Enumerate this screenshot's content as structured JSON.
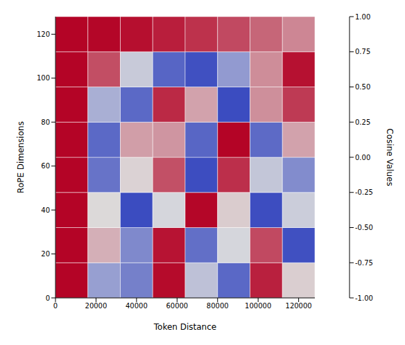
{
  "chart_data": {
    "type": "heatmap",
    "x_label": "Token Distance",
    "y_label": "RoPE Dimensions",
    "x_bins": [
      0,
      16000,
      32000,
      48000,
      64000,
      80000,
      96000,
      112000,
      128000
    ],
    "y_bins": [
      0,
      16,
      32,
      48,
      64,
      80,
      96,
      112,
      128
    ],
    "cells": [
      [
        1,
        -0.43,
        -0.64,
        0.97,
        -0.19,
        -0.81,
        0.87,
        0.07
      ],
      [
        1,
        0.21,
        -0.58,
        0.93,
        -0.76,
        -0.05,
        0.68,
        -0.97
      ],
      [
        1,
        0.02,
        -1.0,
        -0.05,
        0.99,
        0.08,
        -0.99,
        -0.11
      ],
      [
        1,
        -0.73,
        0.05,
        0.65,
        -0.99,
        0.8,
        -0.16,
        -0.56
      ],
      [
        1,
        -0.8,
        0.29,
        0.33,
        -0.82,
        1.0,
        -0.79,
        0.27
      ],
      [
        1,
        -0.32,
        -0.8,
        0.83,
        0.27,
        -1.0,
        0.36,
        0.75
      ],
      [
        1,
        0.66,
        -0.13,
        -0.83,
        -0.97,
        -0.46,
        0.37,
        0.94
      ],
      [
        1,
        0.99,
        0.95,
        0.88,
        0.79,
        0.68,
        0.55,
        0.4
      ]
    ],
    "xlim": [
      0,
      128000
    ],
    "xticks": [
      0,
      20000,
      40000,
      60000,
      80000,
      100000,
      120000
    ],
    "ylim": [
      0,
      128
    ],
    "yticks": [
      0,
      20,
      40,
      60,
      80,
      100,
      120
    ],
    "colorbar": {
      "label": "Cosine Values",
      "lim": [
        -1,
        1
      ],
      "colors": [
        "#3b4cc0",
        "#dddddd",
        "#b40426"
      ],
      "ticks": [
        {
          "value": -1,
          "label": "-1.00"
        },
        {
          "value": -0.75,
          "label": "-0.75"
        },
        {
          "value": -0.5,
          "label": "-0.50"
        },
        {
          "value": -0.25,
          "label": "-0.25"
        },
        {
          "value": 0,
          "label": "0.00"
        },
        {
          "value": 0.25,
          "label": "0.25"
        },
        {
          "value": 0.5,
          "label": "0.50"
        },
        {
          "value": 0.75,
          "label": "0.75"
        },
        {
          "value": 1,
          "label": "1.00"
        }
      ]
    }
  }
}
